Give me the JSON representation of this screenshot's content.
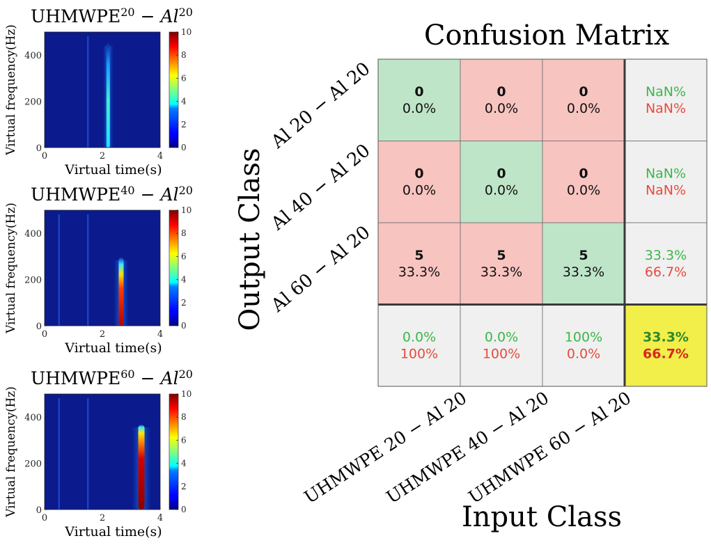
{
  "spectrograms": {
    "panels": [
      {
        "title_main": "UHMWPE",
        "title_sup1": "20",
        "title_dash": "−",
        "title_al": "Al",
        "title_sup2": "20",
        "xlabel": "Virtual time(s)",
        "ylabel": "Virtual frequency(Hz)",
        "xticks": [
          "0",
          "2",
          "4"
        ],
        "yticks": [
          "0",
          "200",
          "400"
        ],
        "colorbar_ticks": [
          "0",
          "2",
          "4",
          "6",
          "8",
          "10"
        ]
      },
      {
        "title_main": "UHMWPE",
        "title_sup1": "40",
        "title_dash": "−",
        "title_al": "Al",
        "title_sup2": "20",
        "xlabel": "Virtual time(s)",
        "ylabel": "Virtual frequency(Hz)",
        "xticks": [
          "0",
          "2",
          "4"
        ],
        "yticks": [
          "0",
          "200",
          "400"
        ],
        "colorbar_ticks": [
          "0",
          "2",
          "4",
          "6",
          "8",
          "10"
        ]
      },
      {
        "title_main": "UHMWPE",
        "title_sup1": "60",
        "title_dash": "−",
        "title_al": "Al",
        "title_sup2": "20",
        "xlabel": "Virtual time(s)",
        "ylabel": "Virtual frequency(Hz)",
        "xticks": [
          "0",
          "2",
          "4"
        ],
        "yticks": [
          "0",
          "200",
          "400"
        ],
        "colorbar_ticks": [
          "0",
          "2",
          "4",
          "6",
          "8",
          "10"
        ]
      }
    ]
  },
  "chart_data": {
    "type": "heatmap",
    "title": "Confusion Matrix",
    "xlabel": "Input Class",
    "ylabel": "Output Class",
    "output_classes": [
      "Al 20 − Al 20",
      "Al 40 − Al 20",
      "Al 60 − Al 20"
    ],
    "input_classes": [
      "UHMWPE 20 − Al 20",
      "UHMWPE 40 − Al 20",
      "UHMWPE 60 − Al 20"
    ],
    "cells": [
      [
        {
          "count": "0",
          "pct": "0.0%"
        },
        {
          "count": "0",
          "pct": "0.0%"
        },
        {
          "count": "0",
          "pct": "0.0%"
        }
      ],
      [
        {
          "count": "0",
          "pct": "0.0%"
        },
        {
          "count": "0",
          "pct": "0.0%"
        },
        {
          "count": "0",
          "pct": "0.0%"
        }
      ],
      [
        {
          "count": "5",
          "pct": "33.3%"
        },
        {
          "count": "5",
          "pct": "33.3%"
        },
        {
          "count": "5",
          "pct": "33.3%"
        }
      ]
    ],
    "row_summary": [
      {
        "correct": "NaN%",
        "error": "NaN%"
      },
      {
        "correct": "NaN%",
        "error": "NaN%"
      },
      {
        "correct": "33.3%",
        "error": "66.7%"
      }
    ],
    "col_summary": [
      {
        "correct": "0.0%",
        "error": "100%"
      },
      {
        "correct": "0.0%",
        "error": "100%"
      },
      {
        "correct": "100%",
        "error": "0.0%"
      }
    ],
    "overall": {
      "correct": "33.3%",
      "error": "66.7%"
    },
    "colors": {
      "diagonal": "#bfe5c9",
      "off_diagonal": "#f7c4c0",
      "summary": "#f0f0f0",
      "overall": "#f2ee4a",
      "correct_text": "#3cb64a",
      "error_text": "#e84a3c",
      "overall_correct_text": "#2a8a2a",
      "overall_error_text": "#d42a1e"
    }
  }
}
